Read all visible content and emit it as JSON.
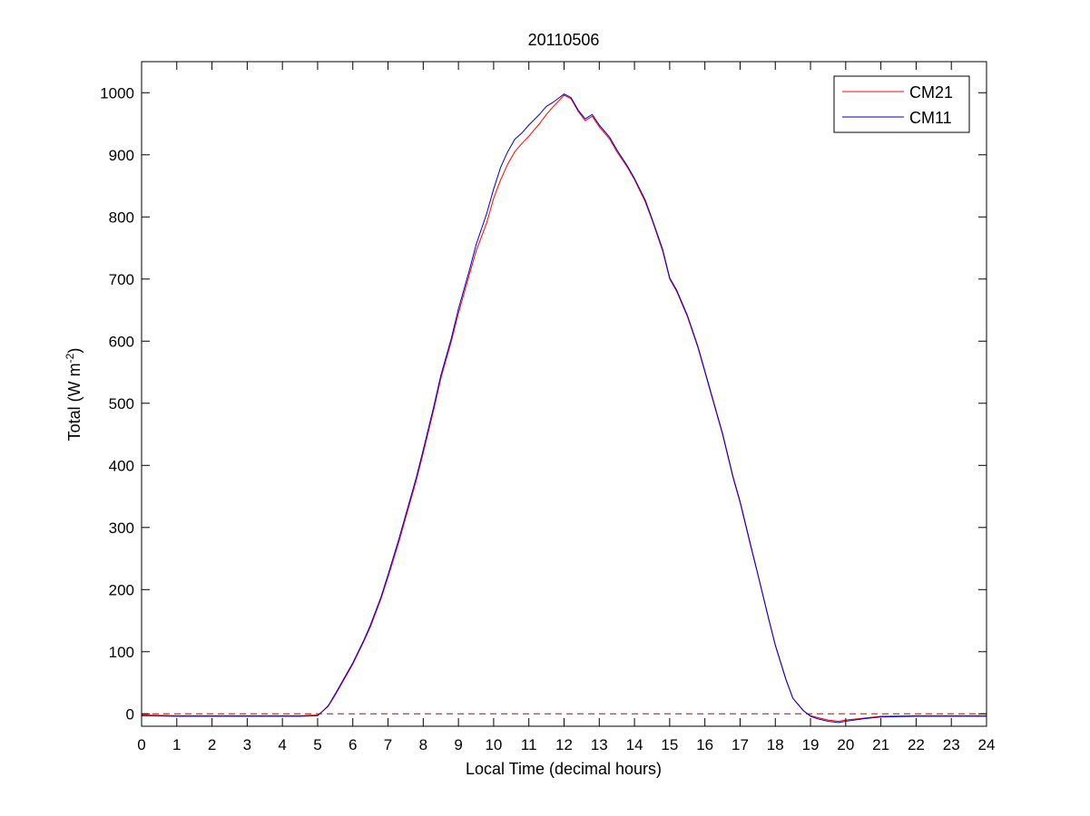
{
  "chart_data": {
    "type": "line",
    "title": "20110506",
    "xlabel": "Local Time (decimal hours)",
    "ylabel_main": "Total (W m",
    "ylabel_sup": "-2",
    "ylabel_close": ")",
    "xlim": [
      0,
      24
    ],
    "ylim": [
      -20,
      1050
    ],
    "xticks": [
      0,
      1,
      2,
      3,
      4,
      5,
      6,
      7,
      8,
      9,
      10,
      11,
      12,
      13,
      14,
      15,
      16,
      17,
      18,
      19,
      20,
      21,
      22,
      23,
      24
    ],
    "yticks": [
      0,
      100,
      200,
      300,
      400,
      500,
      600,
      700,
      800,
      900,
      1000
    ],
    "grid": false,
    "legend_position": "top-right",
    "reference_line": {
      "y": 0,
      "style": "dashed",
      "color": "#cc0000"
    },
    "series": [
      {
        "name": "CM21",
        "color": "#ff0000",
        "x": [
          0,
          1,
          2,
          3,
          4,
          4.5,
          5,
          5.1,
          5.3,
          5.5,
          5.7,
          6,
          6.3,
          6.5,
          6.8,
          7,
          7.3,
          7.5,
          7.8,
          8,
          8.3,
          8.5,
          8.8,
          9,
          9.3,
          9.5,
          9.8,
          10,
          10.2,
          10.4,
          10.6,
          10.8,
          11,
          11.3,
          11.5,
          11.7,
          12,
          12.2,
          12.4,
          12.6,
          12.8,
          13,
          13.3,
          13.5,
          13.8,
          14,
          14.3,
          14.5,
          14.8,
          15,
          15.2,
          15.5,
          15.8,
          16,
          16.3,
          16.5,
          16.8,
          17,
          17.3,
          17.5,
          17.8,
          18,
          18.3,
          18.5,
          18.8,
          19,
          19.2,
          19.5,
          19.8,
          20,
          20.5,
          21,
          22,
          23,
          24
        ],
        "values": [
          -2,
          -3,
          -3,
          -3,
          -3,
          -3,
          -2,
          2,
          12,
          30,
          50,
          80,
          115,
          140,
          185,
          220,
          275,
          315,
          375,
          420,
          490,
          540,
          600,
          645,
          705,
          745,
          790,
          830,
          860,
          885,
          905,
          918,
          930,
          950,
          965,
          978,
          996,
          990,
          970,
          955,
          962,
          945,
          925,
          905,
          880,
          860,
          825,
          795,
          745,
          700,
          680,
          640,
          590,
          550,
          490,
          450,
          380,
          340,
          270,
          225,
          155,
          110,
          55,
          25,
          5,
          -3,
          -6,
          -10,
          -12,
          -10,
          -7,
          -4,
          -3,
          -3,
          -3
        ]
      },
      {
        "name": "CM11",
        "color": "#0000cc",
        "x": [
          0,
          1,
          2,
          3,
          4,
          4.5,
          5,
          5.1,
          5.3,
          5.5,
          5.7,
          6,
          6.3,
          6.5,
          6.8,
          7,
          7.3,
          7.5,
          7.8,
          8,
          8.3,
          8.5,
          8.8,
          9,
          9.3,
          9.5,
          9.8,
          10,
          10.2,
          10.4,
          10.6,
          10.8,
          11,
          11.3,
          11.5,
          11.7,
          12,
          12.2,
          12.4,
          12.6,
          12.8,
          13,
          13.3,
          13.5,
          13.8,
          14,
          14.3,
          14.5,
          14.8,
          15,
          15.2,
          15.5,
          15.8,
          16,
          16.3,
          16.5,
          16.8,
          17,
          17.3,
          17.5,
          17.8,
          18,
          18.3,
          18.5,
          18.8,
          19,
          19.2,
          19.5,
          19.8,
          20,
          20.5,
          21,
          22,
          23,
          24
        ],
        "values": [
          -3,
          -4,
          -4,
          -4,
          -4,
          -4,
          -3,
          2,
          13,
          32,
          52,
          82,
          117,
          143,
          188,
          224,
          280,
          320,
          380,
          425,
          495,
          545,
          605,
          652,
          712,
          755,
          805,
          845,
          880,
          905,
          925,
          935,
          948,
          965,
          978,
          985,
          998,
          992,
          972,
          958,
          965,
          948,
          928,
          908,
          882,
          862,
          828,
          797,
          748,
          702,
          682,
          642,
          592,
          552,
          492,
          452,
          382,
          342,
          272,
          226,
          156,
          111,
          56,
          25,
          5,
          -4,
          -8,
          -12,
          -14,
          -12,
          -8,
          -5,
          -4,
          -4,
          -4
        ]
      }
    ]
  }
}
